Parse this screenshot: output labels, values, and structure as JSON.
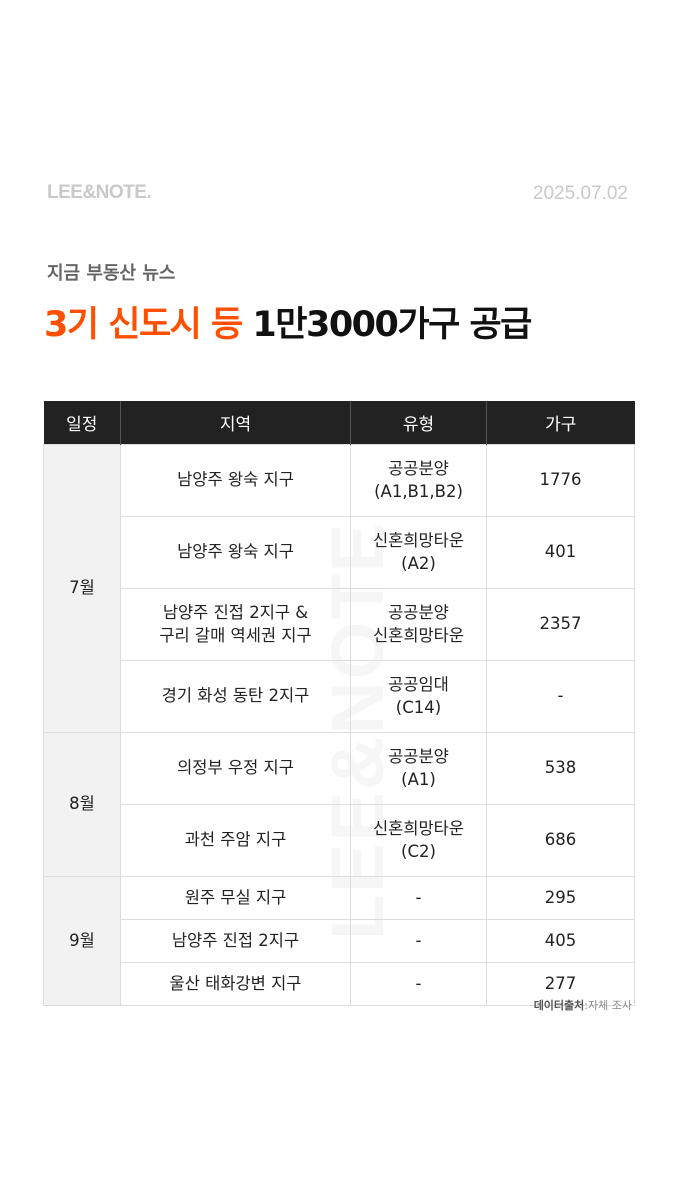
{
  "brand": {
    "logo": "LEE&NOTE.",
    "date": "2025.07.02"
  },
  "subtitle": "지금 부동산 뉴스",
  "headline": {
    "accent": "3기 신도시 등",
    "rest": "1만3000가구 공급"
  },
  "watermark": "LEE&NOTE",
  "table": {
    "headers": [
      "일정",
      "지역",
      "유형",
      "가구"
    ],
    "groups": [
      {
        "month": "7월",
        "rows": [
          {
            "region": "남양주 왕숙 지구",
            "type": "공공분양\n(A1,B1,B2)",
            "units": "1776"
          },
          {
            "region": "남양주 왕숙 지구",
            "type": "신혼희망타운\n(A2)",
            "units": "401"
          },
          {
            "region": "남양주 진접 2지구 &\n구리 갈매 역세권 지구",
            "type": "공공분양\n신혼희망타운",
            "units": "2357"
          },
          {
            "region": "경기 화성 동탄 2지구",
            "type": "공공임대\n(C14)",
            "units": "-"
          }
        ]
      },
      {
        "month": "8월",
        "rows": [
          {
            "region": "의정부 우정 지구",
            "type": "공공분양\n(A1)",
            "units": "538"
          },
          {
            "region": "과천 주암 지구",
            "type": "신혼희망타운\n(C2)",
            "units": "686"
          }
        ]
      },
      {
        "month": "9월",
        "rows": [
          {
            "region": "원주 무실 지구",
            "type": "-",
            "units": "295"
          },
          {
            "region": "남양주 진접 2지구",
            "type": "-",
            "units": "405"
          },
          {
            "region": "울산 태화강변 지구",
            "type": "-",
            "units": "277"
          }
        ]
      }
    ]
  },
  "source": {
    "label": "데이터출처",
    "value": "자체 조사"
  }
}
